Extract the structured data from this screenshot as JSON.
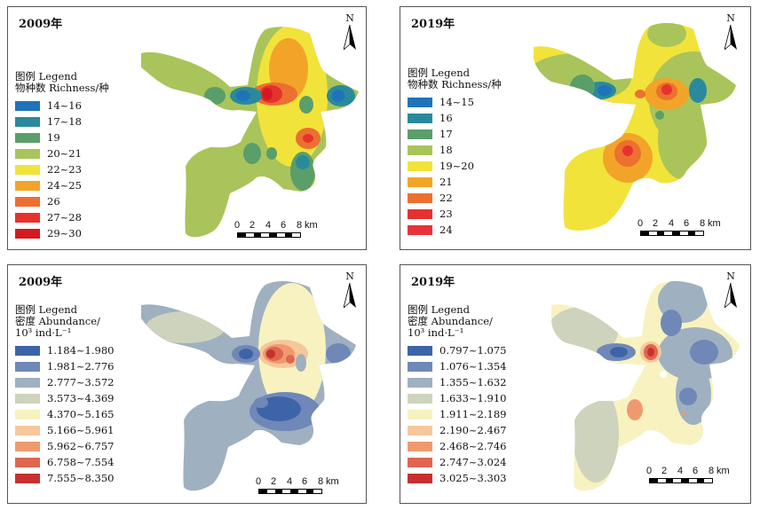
{
  "panels": {
    "tl": {
      "year": "2009年",
      "legend_line1": "图例 Legend",
      "legend_line2": "物种数 Richness/种",
      "legend_line3": "",
      "classes": [
        {
          "label": "14~16",
          "color": "#1f73b8"
        },
        {
          "label": "17~18",
          "color": "#2a8a9c"
        },
        {
          "label": "19",
          "color": "#5a9e6a"
        },
        {
          "label": "20~21",
          "color": "#a9c45a"
        },
        {
          "label": "22~23",
          "color": "#f1e33a"
        },
        {
          "label": "24~25",
          "color": "#f2a428"
        },
        {
          "label": "26",
          "color": "#ec7030"
        },
        {
          "label": "27~28",
          "color": "#e6322e"
        },
        {
          "label": "29~30",
          "color": "#d41a1e"
        }
      ]
    },
    "tr": {
      "year": "2019年",
      "legend_line1": "图例 Legend",
      "legend_line2": "物种数 Richness/种",
      "legend_line3": "",
      "classes": [
        {
          "label": "14~15",
          "color": "#1f73b8"
        },
        {
          "label": "16",
          "color": "#2a8a9c"
        },
        {
          "label": "17",
          "color": "#5a9e6a"
        },
        {
          "label": "18",
          "color": "#a9c45a"
        },
        {
          "label": "19~20",
          "color": "#f1e33a"
        },
        {
          "label": "21",
          "color": "#f2a428"
        },
        {
          "label": "22",
          "color": "#ec7030"
        },
        {
          "label": "23",
          "color": "#e6322e"
        },
        {
          "label": "24",
          "color": "#e8333a"
        }
      ]
    },
    "bl": {
      "year": "2009年",
      "legend_line1": "图例 Legend",
      "legend_line2": "密度 Abundance/",
      "legend_line3": "10³ ind·L⁻¹",
      "classes": [
        {
          "label": "1.184~1.980",
          "color": "#3e64a8"
        },
        {
          "label": "1.981~2.776",
          "color": "#6f88b8"
        },
        {
          "label": "2.777~3.572",
          "color": "#9fb0c0"
        },
        {
          "label": "3.573~4.369",
          "color": "#cdd3bc"
        },
        {
          "label": "4.370~5.165",
          "color": "#f7f2c0"
        },
        {
          "label": "5.166~5.961",
          "color": "#f6c79a"
        },
        {
          "label": "5.962~6.757",
          "color": "#ef9a6e"
        },
        {
          "label": "6.758~7.554",
          "color": "#df6650"
        },
        {
          "label": "7.555~8.350",
          "color": "#c83030"
        }
      ]
    },
    "br": {
      "year": "2019年",
      "legend_line1": "图例 Legend",
      "legend_line2": "密度 Abundance/",
      "legend_line3": "10³ ind·L⁻¹",
      "classes": [
        {
          "label": "0.797~1.075",
          "color": "#3e64a8"
        },
        {
          "label": "1.076~1.354",
          "color": "#6f88b8"
        },
        {
          "label": "1.355~1.632",
          "color": "#9fb0c0"
        },
        {
          "label": "1.633~1.910",
          "color": "#cdd3bc"
        },
        {
          "label": "1.911~2.189",
          "color": "#f7f2c0"
        },
        {
          "label": "2.190~2.467",
          "color": "#f6c79a"
        },
        {
          "label": "2.468~2.746",
          "color": "#ef9a6e"
        },
        {
          "label": "2.747~3.024",
          "color": "#df6650"
        },
        {
          "label": "3.025~3.303",
          "color": "#c83030"
        }
      ]
    }
  },
  "north_label": "N",
  "scale": {
    "ticks": [
      "0",
      "2",
      "4",
      "6",
      "8"
    ],
    "unit": "km"
  }
}
